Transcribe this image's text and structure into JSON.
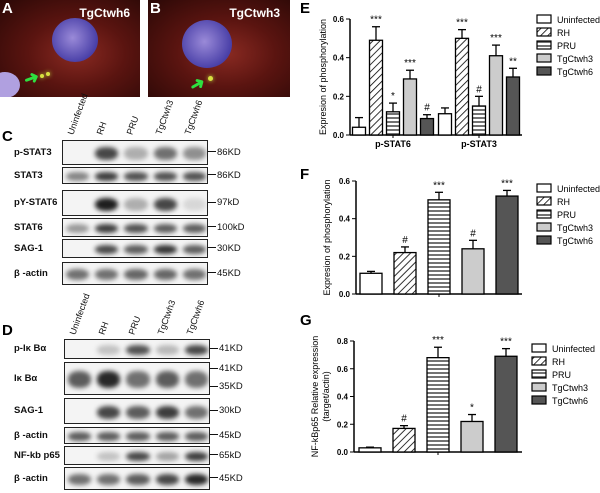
{
  "panels": {
    "A": "A",
    "B": "B",
    "C": "C",
    "D": "D",
    "E": "E",
    "F": "F",
    "G": "G"
  },
  "micrographs": [
    {
      "title": "TgCtwh6"
    },
    {
      "title": "TgCtwh3"
    }
  ],
  "blot_C": {
    "lanes": [
      "Uninfected",
      "RH",
      "PRU",
      "TgCtwh3",
      "TgCtwh6"
    ],
    "rows": [
      {
        "label": "p-STAT3",
        "mw": [
          "86KD"
        ],
        "bands": [
          0,
          0.8,
          0.3,
          0.6,
          0.45
        ]
      },
      {
        "label": "STAT3",
        "mw": [
          "86KD"
        ],
        "bands": [
          0.5,
          0.85,
          0.75,
          0.75,
          0.75
        ]
      },
      {
        "label": "pY-STAT6",
        "mw": [
          "97kD"
        ],
        "bands": [
          0,
          1,
          0.3,
          0.8,
          0.1
        ]
      },
      {
        "label": "STAT6",
        "mw": [
          "100kD"
        ],
        "bands": [
          0.4,
          0.85,
          0.75,
          0.7,
          0.7
        ]
      },
      {
        "label": "SAG-1",
        "mw": [
          "30KD"
        ],
        "bands": [
          0,
          0.8,
          0.7,
          0.9,
          0.7
        ]
      },
      {
        "label": "β -actin",
        "mw": [
          "45KD"
        ],
        "bands": [
          0.6,
          0.6,
          0.65,
          0.65,
          0.6
        ]
      }
    ]
  },
  "blot_D": {
    "lanes": [
      "Uninfected",
      "RH",
      "PRU",
      "TgCtwh3",
      "TgCtwh6"
    ],
    "rows": [
      {
        "label": "p-Iκ Bα",
        "mw": [
          "41KD"
        ],
        "bands": [
          0,
          0.2,
          0.75,
          0.25,
          0.8
        ]
      },
      {
        "label": "Iκ Bα",
        "mw": [
          "41KD",
          "35KD"
        ],
        "bands": [
          0.7,
          0.95,
          0.6,
          0.7,
          0.6
        ]
      },
      {
        "label": "SAG-1",
        "mw": [
          "30kD"
        ],
        "bands": [
          0,
          0.8,
          0.7,
          0.85,
          0.6
        ]
      },
      {
        "label": "β -actin",
        "mw": [
          "45kD"
        ],
        "bands": [
          0.7,
          0.7,
          0.7,
          0.7,
          0.7
        ]
      },
      {
        "label": "NF-kb p65",
        "mw": [
          "65kD"
        ],
        "bands": [
          0,
          0.2,
          0.8,
          0.35,
          0.85
        ]
      },
      {
        "label": "β -actin",
        "mw": [
          "45KD"
        ],
        "bands": [
          0.6,
          0.6,
          0.7,
          0.8,
          0.95
        ]
      }
    ]
  },
  "colors": {
    "uninfected": "#ffffff",
    "rh": "hatch-diagonal",
    "pru": "stripe-horizontal",
    "tgctwh3": "#cccccc",
    "tgctwh6": "#555555"
  },
  "chart_data": [
    {
      "type": "bar",
      "title": "",
      "xlabel": "",
      "ylabel": "Expresion of phosphorylation",
      "ylim": [
        0,
        0.6
      ],
      "yticks": [
        "0.0",
        "0.2",
        "0.4",
        "0.6"
      ],
      "categories": [
        "p-STAT6",
        "p-STAT3"
      ],
      "legend": "right",
      "series": [
        {
          "name": "Uninfected",
          "values": [
            0.04,
            0.11
          ],
          "errors": [
            0.05,
            0.03
          ],
          "sig": [
            "",
            ""
          ]
        },
        {
          "name": "RH",
          "values": [
            0.49,
            0.5
          ],
          "errors": [
            0.07,
            0.045
          ],
          "sig": [
            "***",
            "***"
          ]
        },
        {
          "name": "PRU",
          "values": [
            0.12,
            0.15
          ],
          "errors": [
            0.045,
            0.05
          ],
          "sig": [
            "*",
            "#"
          ]
        },
        {
          "name": "TgCtwh3",
          "values": [
            0.29,
            0.41
          ],
          "errors": [
            0.045,
            0.055
          ],
          "sig": [
            "***",
            "***"
          ]
        },
        {
          "name": "TgCtwh6",
          "values": [
            0.085,
            0.3
          ],
          "errors": [
            0.02,
            0.045
          ],
          "sig": [
            "#",
            "**"
          ]
        }
      ]
    },
    {
      "type": "bar",
      "title": "",
      "xlabel": "",
      "ylabel": "Expresion of phosphorylation",
      "ylim": [
        0,
        0.6
      ],
      "yticks": [
        "0.0",
        "0.2",
        "0.4",
        "0.6"
      ],
      "categories": [
        ""
      ],
      "legend": "right",
      "series": [
        {
          "name": "Uninfected",
          "values": [
            0.11
          ],
          "errors": [
            0.01
          ],
          "sig": [
            ""
          ]
        },
        {
          "name": "RH",
          "values": [
            0.22
          ],
          "errors": [
            0.03
          ],
          "sig": [
            "#"
          ]
        },
        {
          "name": "PRU",
          "values": [
            0.5
          ],
          "errors": [
            0.04
          ],
          "sig": [
            "***"
          ]
        },
        {
          "name": "TgCtwh3",
          "values": [
            0.24
          ],
          "errors": [
            0.045
          ],
          "sig": [
            "#"
          ]
        },
        {
          "name": "TgCtwh6",
          "values": [
            0.52
          ],
          "errors": [
            0.03
          ],
          "sig": [
            "***"
          ]
        }
      ]
    },
    {
      "type": "bar",
      "title": "",
      "xlabel": "",
      "ylabel": "NF-kBp65 Relative expression",
      "ylabel2": "(target/actin)",
      "ylim": [
        0,
        0.8
      ],
      "yticks": [
        "0.0",
        "0.2",
        "0.4",
        "0.6",
        "0.8"
      ],
      "categories": [
        ""
      ],
      "legend": "right",
      "series": [
        {
          "name": "Uninfected",
          "values": [
            0.03
          ],
          "errors": [
            0.005
          ],
          "sig": [
            ""
          ]
        },
        {
          "name": "RH",
          "values": [
            0.17
          ],
          "errors": [
            0.02
          ],
          "sig": [
            "#"
          ]
        },
        {
          "name": "PRU",
          "values": [
            0.68
          ],
          "errors": [
            0.075
          ],
          "sig": [
            "***"
          ]
        },
        {
          "name": "TgCtwh3",
          "values": [
            0.22
          ],
          "errors": [
            0.05
          ],
          "sig": [
            "*"
          ]
        },
        {
          "name": "TgCtwh6",
          "values": [
            0.69
          ],
          "errors": [
            0.055
          ],
          "sig": [
            "***"
          ]
        }
      ]
    }
  ]
}
